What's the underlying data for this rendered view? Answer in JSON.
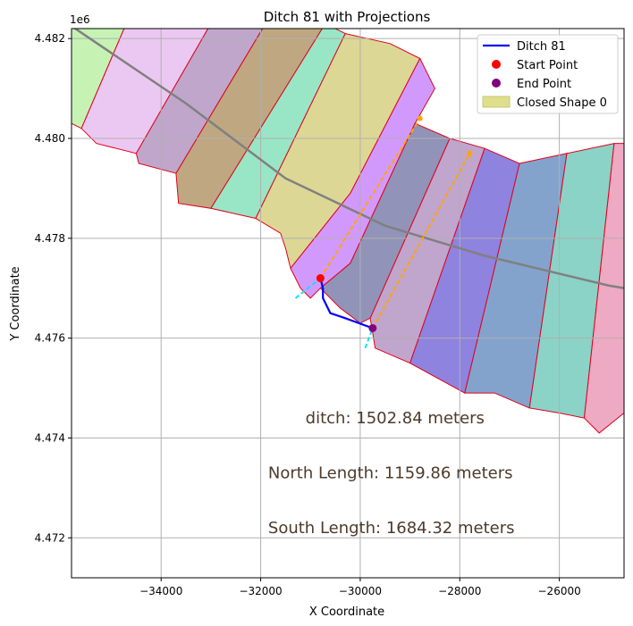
{
  "chart_data": {
    "type": "map",
    "title": "Ditch 81 with Projections",
    "xlabel": "X Coordinate",
    "ylabel": "Y Coordinate",
    "y_offset_label": "1e6",
    "xlim": [
      -35800,
      -24700
    ],
    "ylim": [
      4.4712,
      4.4822
    ],
    "x_ticks": [
      -34000,
      -32000,
      -30000,
      -28000,
      -26000
    ],
    "x_tick_labels": [
      "−34000",
      "−32000",
      "−30000",
      "−28000",
      "−26000"
    ],
    "y_ticks": [
      4.472,
      4.474,
      4.476,
      4.478,
      4.48,
      4.482
    ],
    "y_tick_labels": [
      "4.472",
      "4.474",
      "4.476",
      "4.478",
      "4.480",
      "4.482"
    ],
    "grid": true,
    "legend_position": "top-right",
    "legend": [
      {
        "label": "Ditch 81",
        "kind": "line",
        "color": "#0000ff"
      },
      {
        "label": "Start Point",
        "kind": "dot",
        "color": "#ff0000"
      },
      {
        "label": "End Point",
        "kind": "dot",
        "color": "#800080"
      },
      {
        "label": "Closed Shape 0",
        "kind": "patch",
        "color": "#dede8c"
      }
    ],
    "parcels": [
      {
        "color": "#c6f3b4",
        "points": [
          [
            -35800,
            4.4823
          ],
          [
            -34700,
            4.4823
          ],
          [
            -35600,
            4.4802
          ],
          [
            -35800,
            4.4803
          ]
        ]
      },
      {
        "color": "#ebc8f1",
        "points": [
          [
            -34700,
            4.4823
          ],
          [
            -33000,
            4.4823
          ],
          [
            -34500,
            4.4797
          ],
          [
            -35300,
            4.4799
          ],
          [
            -35600,
            4.4802
          ]
        ]
      },
      {
        "color": "#c0a6cb",
        "points": [
          [
            -33000,
            4.4823
          ],
          [
            -31900,
            4.4823
          ],
          [
            -33700,
            4.4793
          ],
          [
            -34450,
            4.4795
          ],
          [
            -34500,
            4.4797
          ]
        ]
      },
      {
        "color": "#bea781",
        "points": [
          [
            -31900,
            4.4823
          ],
          [
            -30700,
            4.4823
          ],
          [
            -33000,
            4.4786
          ],
          [
            -33650,
            4.4787
          ],
          [
            -33700,
            4.4793
          ]
        ]
      },
      {
        "color": "#98e6c5",
        "points": [
          [
            -30700,
            4.4823
          ],
          [
            -30300,
            4.4821
          ],
          [
            -32100,
            4.4784
          ],
          [
            -33000,
            4.4786
          ]
        ]
      },
      {
        "color": "#ddd795",
        "points": [
          [
            -30300,
            4.4821
          ],
          [
            -29400,
            4.4819
          ],
          [
            -28800,
            4.4816
          ],
          [
            -30200,
            4.4789
          ],
          [
            -31400,
            4.4774
          ],
          [
            -31500,
            4.4778
          ],
          [
            -31600,
            4.4781
          ],
          [
            -32100,
            4.4784
          ]
        ]
      },
      {
        "color": "#d299fd",
        "points": [
          [
            -28800,
            4.4816
          ],
          [
            -28500,
            4.481
          ],
          [
            -28900,
            4.4803
          ],
          [
            -30200,
            4.4775
          ],
          [
            -30800,
            4.477
          ],
          [
            -31000,
            4.4768
          ],
          [
            -31200,
            4.477
          ],
          [
            -31400,
            4.4774
          ],
          [
            -30200,
            4.4789
          ]
        ]
      },
      {
        "color": "#9293b8",
        "points": [
          [
            -28900,
            4.4803
          ],
          [
            -28200,
            4.48
          ],
          [
            -29800,
            4.4764
          ],
          [
            -30000,
            4.4763
          ],
          [
            -30400,
            4.4766
          ],
          [
            -30800,
            4.477
          ],
          [
            -30200,
            4.4775
          ]
        ]
      },
      {
        "color": "#c0a5cd",
        "points": [
          [
            -28200,
            4.48
          ],
          [
            -27500,
            4.4798
          ],
          [
            -29000,
            4.4755
          ],
          [
            -29700,
            4.4758
          ],
          [
            -29800,
            4.4764
          ]
        ]
      },
      {
        "color": "#8e83de",
        "points": [
          [
            -27500,
            4.4798
          ],
          [
            -26800,
            4.4795
          ],
          [
            -27900,
            4.4749
          ],
          [
            -29000,
            4.4755
          ]
        ]
      },
      {
        "color": "#83a3cd",
        "points": [
          [
            -26800,
            4.4795
          ],
          [
            -25850,
            4.4797
          ],
          [
            -26600,
            4.4746
          ],
          [
            -27300,
            4.4749
          ],
          [
            -27900,
            4.4749
          ]
        ]
      },
      {
        "color": "#8bd2c7",
        "points": [
          [
            -25850,
            4.4797
          ],
          [
            -24900,
            4.4799
          ],
          [
            -25500,
            4.4744
          ],
          [
            -26000,
            4.4745
          ],
          [
            -26600,
            4.4746
          ]
        ]
      },
      {
        "color": "#eea9c3",
        "points": [
          [
            -24900,
            4.4799
          ],
          [
            -24700,
            4.4799
          ],
          [
            -24700,
            4.4745
          ],
          [
            -25200,
            4.4741
          ],
          [
            -25500,
            4.4744
          ]
        ]
      }
    ],
    "centerline": [
      [
        -35800,
        4.48225
      ],
      [
        -33500,
        4.4807
      ],
      [
        -31500,
        4.4792
      ],
      [
        -29500,
        4.47825
      ],
      [
        -27500,
        4.47765
      ],
      [
        -25000,
        4.47705
      ],
      [
        -24700,
        4.477
      ]
    ],
    "ditch": [
      [
        -30800,
        4.4772
      ],
      [
        -30750,
        4.477
      ],
      [
        -30750,
        4.4768
      ],
      [
        -30600,
        4.4765
      ],
      [
        -30300,
        4.4764
      ],
      [
        -29750,
        4.4762
      ]
    ],
    "start_point": [
      -30800,
      4.4772
    ],
    "end_point": [
      -29750,
      4.4762
    ],
    "north_projection": [
      [
        -31300,
        4.4768
      ],
      [
        -30800,
        4.4772
      ],
      [
        -28800,
        4.4804
      ]
    ],
    "south_projection": [
      [
        -29900,
        4.4758
      ],
      [
        -29750,
        4.4762
      ],
      [
        -27800,
        4.4797
      ]
    ],
    "annotations": [
      {
        "text": "ditch: 1502.84 meters",
        "x": -31100,
        "y": 4.4744
      },
      {
        "text": "North Length: 1159.86 meters",
        "x": -31850,
        "y": 4.4733
      },
      {
        "text": "South Length: 1684.32 meters",
        "x": -31850,
        "y": 4.4722
      }
    ]
  }
}
